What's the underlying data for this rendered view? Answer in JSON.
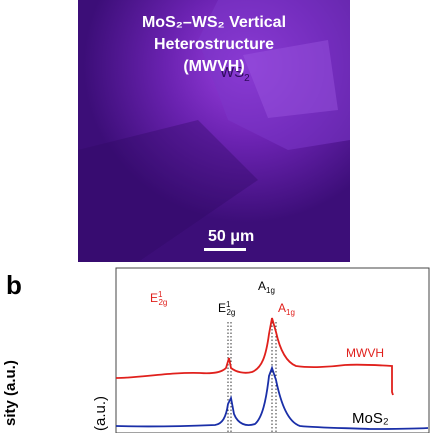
{
  "micrograph": {
    "title_lines": [
      "MoS₂–WS₂ Vertical",
      "Heterostructure",
      "(MWVH)"
    ],
    "region_label_main": "WS",
    "region_label_sub": "2",
    "scale_bar": "50 μm"
  },
  "panel_b": {
    "panel_letter": "b",
    "ylabel_left": "sity (a.u.)",
    "ylabel_right": "(a.u.)",
    "peak_labels": {
      "a1g_top": "A1g",
      "e1_2g_mos2_red": "E12g",
      "e1_2g_black": "E12g",
      "a1g_red": "A1g"
    },
    "curve_labels": {
      "mwvh": "MWVH",
      "mos2": "MoS₂"
    },
    "colors": {
      "mwvh": "#e0201c",
      "mos2": "#1a2fa8",
      "bg_purple": "#4a1288"
    }
  }
}
